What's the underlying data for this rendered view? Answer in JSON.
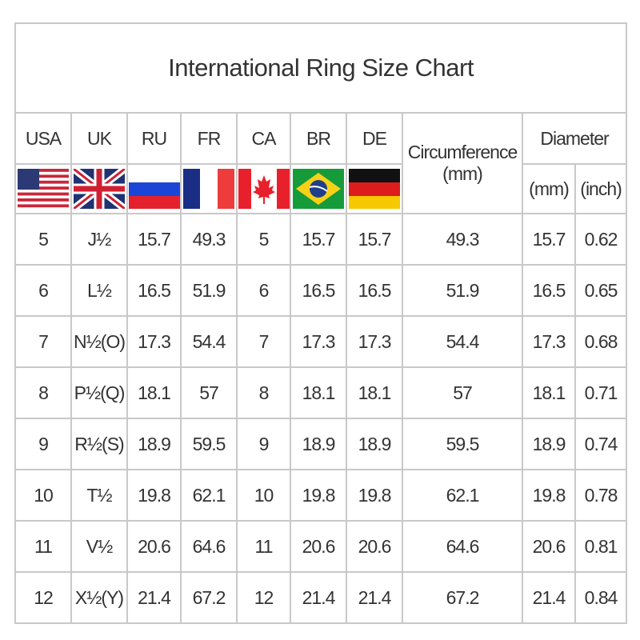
{
  "title": "International Ring Size Chart",
  "columns": [
    {
      "label": "USA",
      "flag": "us-flag-icon"
    },
    {
      "label": "UK",
      "flag": "uk-flag-icon"
    },
    {
      "label": "RU",
      "flag": "russia-flag-icon"
    },
    {
      "label": "FR",
      "flag": "france-flag-icon"
    },
    {
      "label": "CA",
      "flag": "canada-flag-icon"
    },
    {
      "label": "BR",
      "flag": "brazil-flag-icon"
    },
    {
      "label": "DE",
      "flag": "germany-flag-icon"
    }
  ],
  "circumference": {
    "label": "Circumference",
    "unit": "(mm)"
  },
  "diameter": {
    "label": "Diameter",
    "mm": "(mm)",
    "inch": "(inch)"
  },
  "rows": [
    [
      "5",
      "J½",
      "15.7",
      "49.3",
      "5",
      "15.7",
      "15.7",
      "49.3",
      "15.7",
      "0.62"
    ],
    [
      "6",
      "L½",
      "16.5",
      "51.9",
      "6",
      "16.5",
      "16.5",
      "51.9",
      "16.5",
      "0.65"
    ],
    [
      "7",
      "N½(O)",
      "17.3",
      "54.4",
      "7",
      "17.3",
      "17.3",
      "54.4",
      "17.3",
      "0.68"
    ],
    [
      "8",
      "P½(Q)",
      "18.1",
      "57",
      "8",
      "18.1",
      "18.1",
      "57",
      "18.1",
      "0.71"
    ],
    [
      "9",
      "R½(S)",
      "18.9",
      "59.5",
      "9",
      "18.9",
      "18.9",
      "59.5",
      "18.9",
      "0.74"
    ],
    [
      "10",
      "T½",
      "19.8",
      "62.1",
      "10",
      "19.8",
      "19.8",
      "62.1",
      "19.8",
      "0.78"
    ],
    [
      "11",
      "V½",
      "20.6",
      "64.6",
      "11",
      "20.6",
      "20.6",
      "64.6",
      "20.6",
      "0.81"
    ],
    [
      "12",
      "X½(Y)",
      "21.4",
      "67.2",
      "12",
      "21.4",
      "21.4",
      "67.2",
      "21.4",
      "0.84"
    ]
  ]
}
